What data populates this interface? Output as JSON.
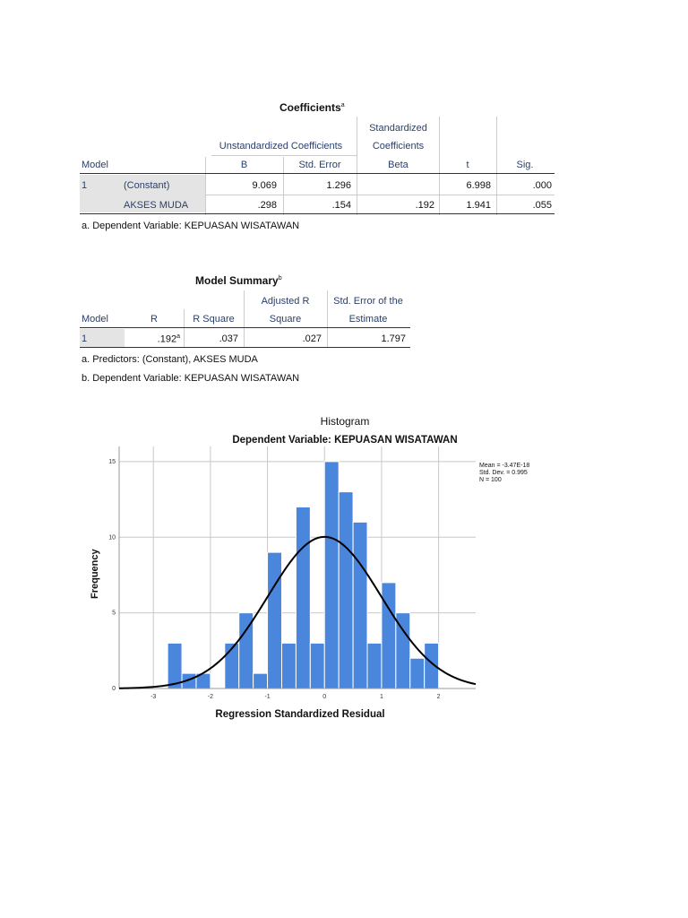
{
  "coefficients": {
    "title": "Coefficients",
    "title_sup": "a",
    "headers": {
      "model": "Model",
      "unstd": "Unstandardized Coefficients",
      "std_line1": "Standardized",
      "std_line2": "Coefficients",
      "b": "B",
      "std_error": "Std. Error",
      "beta": "Beta",
      "t": "t",
      "sig": "Sig."
    },
    "rows": [
      {
        "model": "1",
        "name": "(Constant)",
        "b": "9.069",
        "se": "1.296",
        "beta": "",
        "t": "6.998",
        "sig": ".000"
      },
      {
        "model": "",
        "name": "AKSES MUDA",
        "b": ".298",
        "se": ".154",
        "beta": ".192",
        "t": "1.941",
        "sig": ".055"
      }
    ],
    "footnote": "a. Dependent Variable: KEPUASAN WISATAWAN"
  },
  "model_summary": {
    "title": "Model Summary",
    "title_sup": "b",
    "headers": {
      "model": "Model",
      "r": "R",
      "r_square": "R Square",
      "adj_line1": "Adjusted R",
      "adj_line2": "Square",
      "see_line1": "Std. Error of the",
      "see_line2": "Estimate"
    },
    "row": {
      "model": "1",
      "r": ".192",
      "r_sup": "a",
      "r_square": ".037",
      "adj": ".027",
      "see": "1.797"
    },
    "footnote_a": "a. Predictors: (Constant), AKSES MUDA",
    "footnote_b": "b. Dependent Variable: KEPUASAN WISATAWAN"
  },
  "chart_data": {
    "type": "bar",
    "title": "Histogram",
    "subtitle": "Dependent Variable: KEPUASAN WISATAWAN",
    "xlabel": "Regression Standardized Residual",
    "ylabel": "Frequency",
    "xlim": [
      -3.6,
      2.65
    ],
    "ylim": [
      0,
      16
    ],
    "x_ticks": [
      -3,
      -2,
      -1,
      0,
      1,
      2
    ],
    "x_tick_labels": [
      "-3",
      "-2",
      "-1",
      "0",
      "1",
      "2"
    ],
    "y_ticks": [
      0,
      5,
      10,
      15
    ],
    "y_tick_labels": [
      "0",
      "5",
      "10",
      "15"
    ],
    "bin_width": 0.25,
    "bins": [
      {
        "start": -2.75,
        "count": 3
      },
      {
        "start": -2.5,
        "count": 1
      },
      {
        "start": -2.25,
        "count": 1
      },
      {
        "start": -1.75,
        "count": 3
      },
      {
        "start": -1.5,
        "count": 5
      },
      {
        "start": -1.25,
        "count": 1
      },
      {
        "start": -1.0,
        "count": 9
      },
      {
        "start": -0.75,
        "count": 3
      },
      {
        "start": -0.5,
        "count": 12
      },
      {
        "start": -0.25,
        "count": 3
      },
      {
        "start": 0.0,
        "count": 15
      },
      {
        "start": 0.25,
        "count": 13
      },
      {
        "start": 0.5,
        "count": 11
      },
      {
        "start": 0.75,
        "count": 3
      },
      {
        "start": 1.0,
        "count": 7
      },
      {
        "start": 1.25,
        "count": 5
      },
      {
        "start": 1.5,
        "count": 2
      },
      {
        "start": 1.75,
        "count": 3
      }
    ],
    "normal_curve": {
      "mean": 0,
      "sd": 0.995,
      "n": 100
    },
    "legend": [
      "Mean = -3.47E-18",
      "Std. Dev. = 0.995",
      "N = 100"
    ],
    "legend_position": "top-right",
    "grid": true,
    "bar_color": "#4a86dc",
    "curve_color": "#000000"
  }
}
